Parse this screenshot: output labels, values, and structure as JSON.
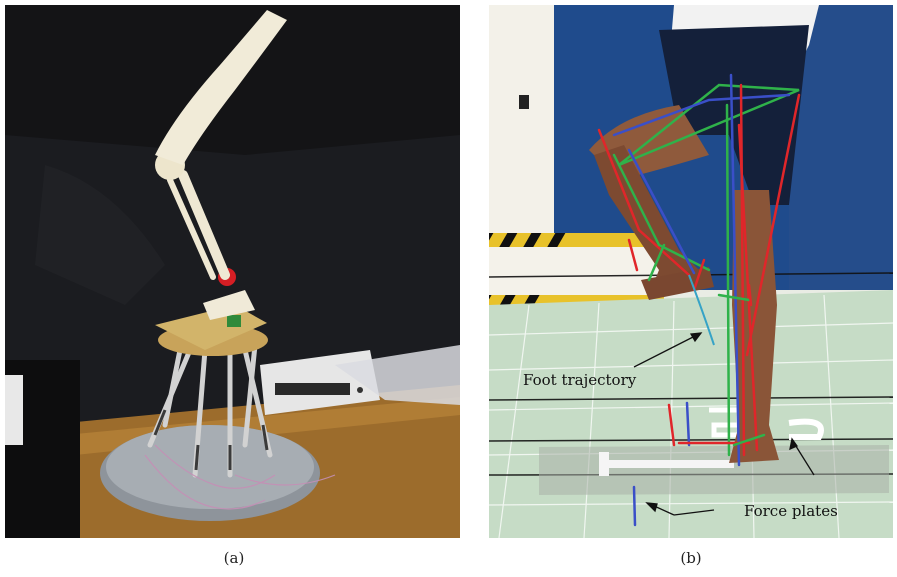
{
  "figure": {
    "panel_a": {
      "caption": "(a)"
    },
    "panel_b": {
      "caption": "(b)",
      "annotations": {
        "foot_trajectory": "Foot trajectory",
        "force_plates": "Force plates"
      }
    }
  },
  "colors": {
    "background": "#ffffff",
    "marker_red": "#e0262a",
    "marker_green": "#2fb24a",
    "marker_blue": "#3a4fc8",
    "floor_green": "#c6dcc6"
  }
}
